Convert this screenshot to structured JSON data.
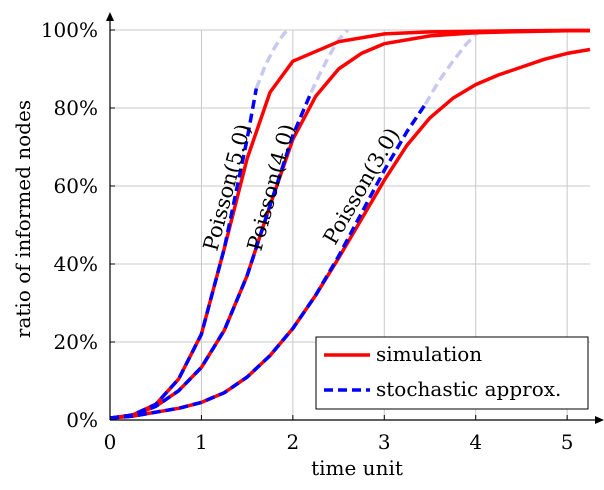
{
  "chart_data": {
    "type": "line",
    "xlabel": "time unit",
    "ylabel": "ratio of informed nodes",
    "xlim": [
      0,
      5.25
    ],
    "ylim": [
      0,
      100
    ],
    "x_ticks": [
      "0",
      "1",
      "2",
      "3",
      "4",
      "5"
    ],
    "y_ticks": [
      "0%",
      "20%",
      "40%",
      "60%",
      "80%",
      "100%"
    ],
    "grid": true,
    "legend_position": "bottom-right",
    "legend": [
      {
        "label": "simulation",
        "style": "solid",
        "color": "#ff0000"
      },
      {
        "label": "stochastic approx.",
        "style": "dashed",
        "color": "#0000ff"
      }
    ],
    "curve_labels": [
      "Poisson(5.0)",
      "Poisson(4.0)",
      "Poisson(3.0)"
    ],
    "series": [
      {
        "name": "simulation",
        "group": "Poisson(5.0)",
        "color": "#ff0000",
        "style": "solid",
        "x": [
          0,
          0.25,
          0.5,
          0.75,
          1.0,
          1.25,
          1.5,
          1.75,
          2.0,
          2.5,
          3.0,
          3.5,
          4.0,
          4.5,
          5.0,
          5.25
        ],
        "y": [
          0.5,
          1.3,
          4,
          10.5,
          22,
          44,
          67,
          84,
          92,
          97,
          99,
          99.5,
          99.7,
          99.8,
          99.9,
          99.9
        ]
      },
      {
        "name": "stochastic approx.",
        "group": "Poisson(5.0)",
        "color": "#0000ff",
        "style": "dashed",
        "x": [
          0,
          0.25,
          0.5,
          0.75,
          1.0,
          1.25,
          1.5,
          1.6
        ],
        "y": [
          0.5,
          1.3,
          4,
          10.5,
          22,
          44,
          72,
          85
        ]
      },
      {
        "name": "stochastic approx. (faded)",
        "group": "Poisson(5.0)",
        "color": "#c8c8f0",
        "style": "dashed",
        "x": [
          1.6,
          1.7,
          1.8,
          1.9,
          1.95
        ],
        "y": [
          85,
          91,
          95.5,
          99,
          100
        ]
      },
      {
        "name": "simulation",
        "group": "Poisson(4.0)",
        "color": "#ff0000",
        "style": "solid",
        "x": [
          0,
          0.25,
          0.5,
          0.75,
          1.0,
          1.25,
          1.5,
          1.75,
          2.0,
          2.25,
          2.5,
          2.75,
          3.0,
          3.5,
          4.0,
          4.5,
          5.0,
          5.25
        ],
        "y": [
          0.5,
          1.2,
          3.5,
          7.5,
          13.5,
          23,
          37,
          55,
          72,
          83,
          90,
          94,
          96.5,
          98.5,
          99.3,
          99.6,
          99.8,
          99.8
        ]
      },
      {
        "name": "stochastic approx.",
        "group": "Poisson(4.0)",
        "color": "#0000ff",
        "style": "dashed",
        "x": [
          0,
          0.25,
          0.5,
          0.75,
          1.0,
          1.25,
          1.5,
          1.75,
          2.0,
          2.2
        ],
        "y": [
          0.5,
          1.2,
          3.5,
          7.5,
          13.5,
          23,
          37,
          55,
          73,
          84
        ]
      },
      {
        "name": "stochastic approx. (faded)",
        "group": "Poisson(4.0)",
        "color": "#c8c8f0",
        "style": "dashed",
        "x": [
          2.2,
          2.3,
          2.4,
          2.5,
          2.6
        ],
        "y": [
          84,
          89,
          93.5,
          97.5,
          100
        ]
      },
      {
        "name": "simulation",
        "group": "Poisson(3.0)",
        "color": "#ff0000",
        "style": "solid",
        "x": [
          0,
          0.25,
          0.5,
          0.75,
          1.0,
          1.25,
          1.5,
          1.75,
          2.0,
          2.25,
          2.5,
          2.75,
          3.0,
          3.25,
          3.5,
          3.75,
          4.0,
          4.25,
          4.5,
          4.75,
          5.0,
          5.25
        ],
        "y": [
          0.5,
          1,
          2,
          3,
          4.5,
          7,
          11,
          16.5,
          23.5,
          32,
          41.5,
          51.5,
          61.5,
          70.5,
          77.5,
          82.5,
          86,
          88.5,
          90.5,
          92.5,
          94,
          95
        ]
      },
      {
        "name": "stochastic approx.",
        "group": "Poisson(3.0)",
        "color": "#0000ff",
        "style": "dashed",
        "x": [
          0,
          0.25,
          0.5,
          0.75,
          1.0,
          1.25,
          1.5,
          1.75,
          2.0,
          2.25,
          2.5,
          2.75,
          3.0,
          3.25,
          3.45
        ],
        "y": [
          0.5,
          1,
          2,
          3,
          4.5,
          7,
          11,
          16.5,
          23.5,
          32,
          42,
          53,
          64,
          74,
          81
        ]
      },
      {
        "name": "stochastic approx. (faded)",
        "group": "Poisson(3.0)",
        "color": "#c8c8f0",
        "style": "dashed",
        "x": [
          3.45,
          3.6,
          3.75,
          3.9,
          4.05
        ],
        "y": [
          81,
          87,
          92,
          96.5,
          100
        ]
      }
    ]
  }
}
